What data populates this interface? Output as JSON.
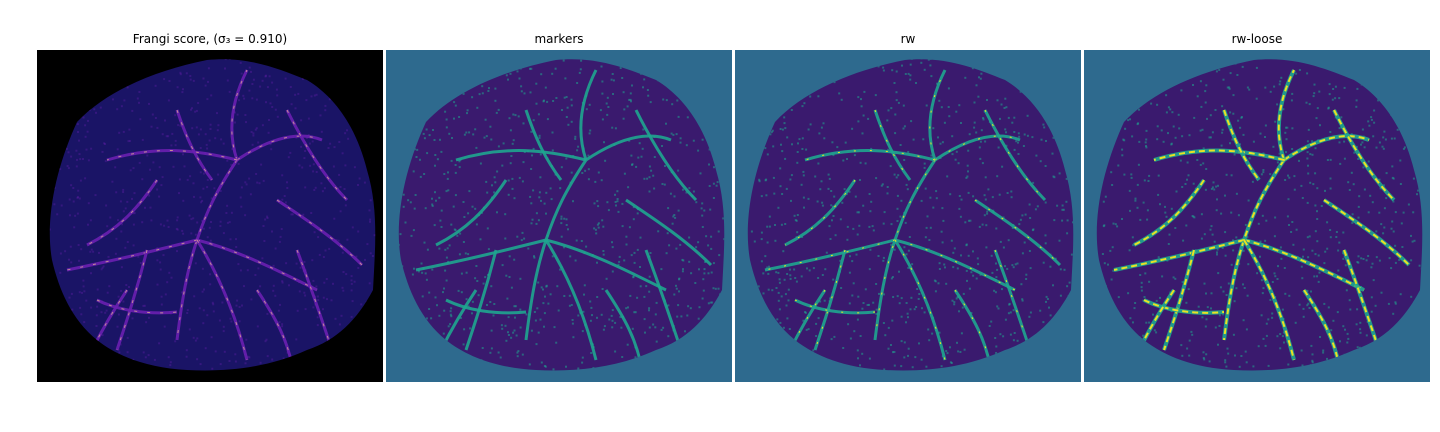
{
  "figure": {
    "panels": [
      {
        "title": "Frangi score, (σ₃ = 0.910)",
        "background": "#000000",
        "tissue": "#1a1466",
        "vessel": "#6a1fb0",
        "highlight": "#ffd38a"
      },
      {
        "title": "markers",
        "background": "#2e6a8e",
        "tissue": "#3a1a6e",
        "vessel": "#1fa68f",
        "highlight": "#1fa68f"
      },
      {
        "title": "rw",
        "background": "#2e6a8e",
        "tissue": "#3a1a6e",
        "vessel": "#1fa68f",
        "highlight": "#f5e61f"
      },
      {
        "title": "rw-loose",
        "background": "#2e6a8e",
        "tissue": "#3a1a6e",
        "vessel": "#1fa68f",
        "highlight": "#f5e61f"
      }
    ]
  }
}
